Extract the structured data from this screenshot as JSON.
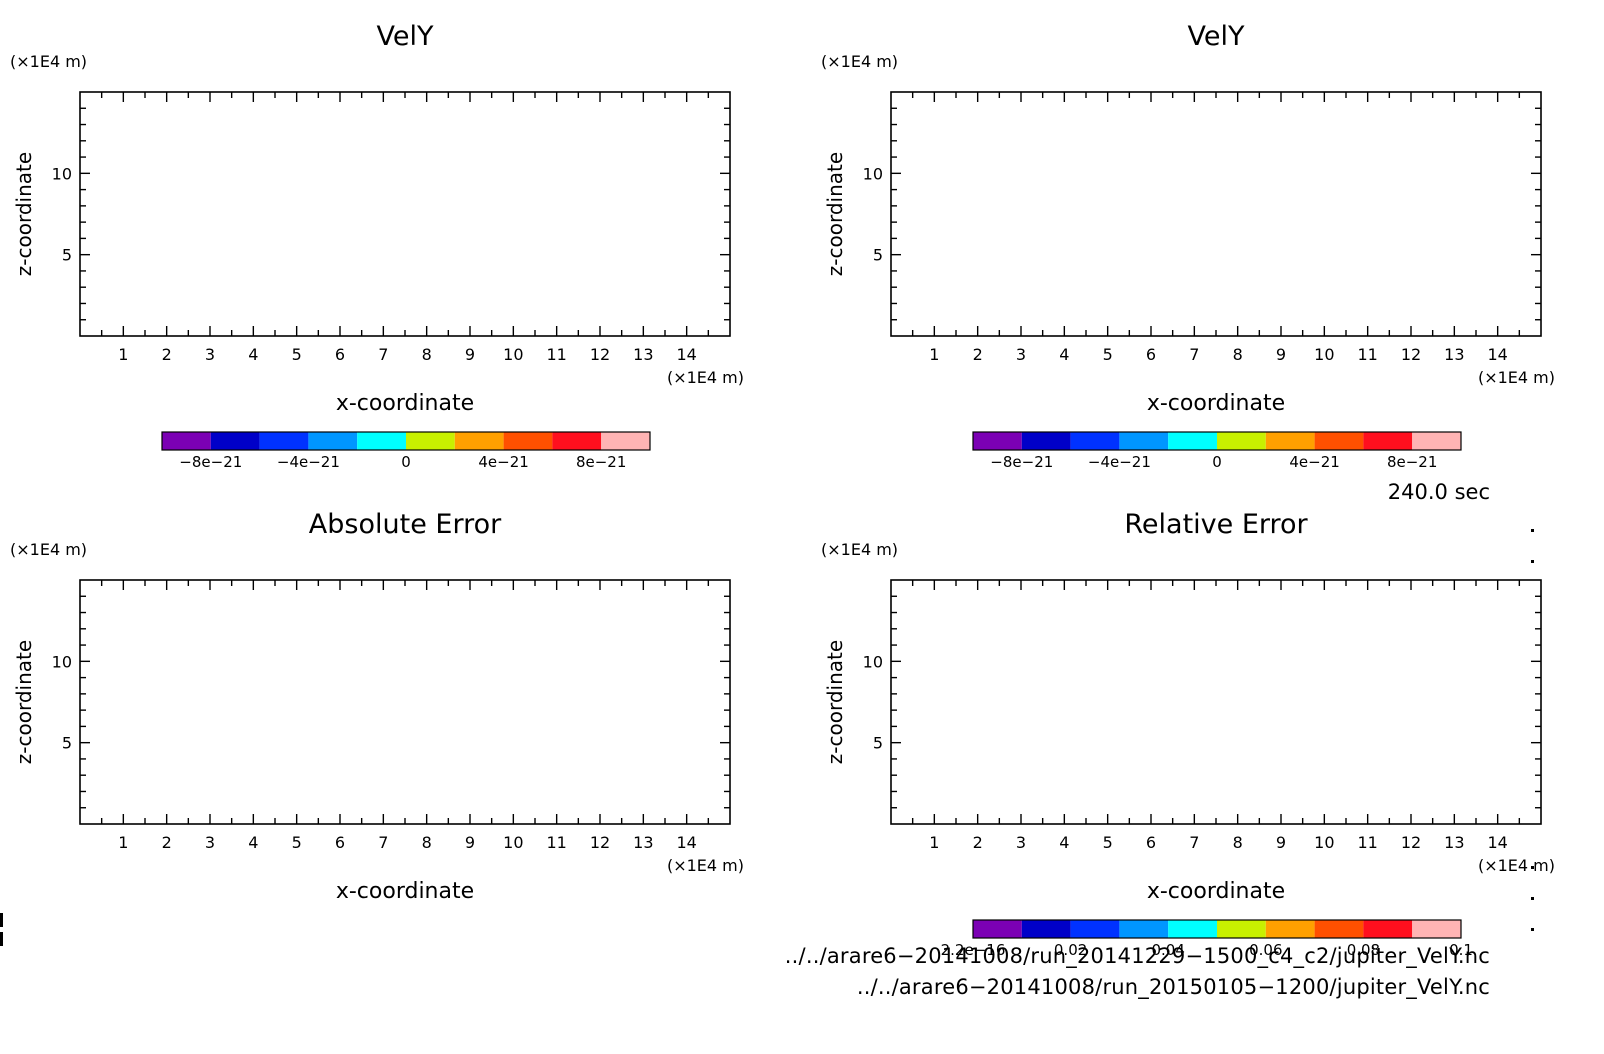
{
  "chart_data": [
    {
      "type": "heatmap",
      "title": "VelY",
      "xlabel": "x-coordinate",
      "ylabel": "z-coordinate",
      "x_unit": "(×1E4 m)",
      "y_unit": "(×1E4 m)",
      "xlim": [
        0,
        15
      ],
      "ylim": [
        0,
        15
      ],
      "xticks": [
        "1",
        "2",
        "3",
        "4",
        "5",
        "6",
        "7",
        "8",
        "9",
        "10",
        "11",
        "12",
        "13",
        "14"
      ],
      "yticks": [
        "5",
        "10"
      ],
      "colorbar": {
        "colors": [
          "#7b00b4",
          "#0000c8",
          "#0032ff",
          "#0096ff",
          "#00ffff",
          "#c8f000",
          "#ffa000",
          "#ff5000",
          "#ff0f1e",
          "#ffb4b4"
        ],
        "labels": [
          "−8e−21",
          "−4e−21",
          "0",
          "4e−21",
          "8e−21"
        ]
      }
    },
    {
      "type": "heatmap",
      "title": "VelY",
      "xlabel": "x-coordinate",
      "ylabel": "z-coordinate",
      "x_unit": "(×1E4 m)",
      "y_unit": "(×1E4 m)",
      "xlim": [
        0,
        15
      ],
      "ylim": [
        0,
        15
      ],
      "xticks": [
        "1",
        "2",
        "3",
        "4",
        "5",
        "6",
        "7",
        "8",
        "9",
        "10",
        "11",
        "12",
        "13",
        "14"
      ],
      "yticks": [
        "5",
        "10"
      ],
      "colorbar": {
        "colors": [
          "#7b00b4",
          "#0000c8",
          "#0032ff",
          "#0096ff",
          "#00ffff",
          "#c8f000",
          "#ffa000",
          "#ff5000",
          "#ff0f1e",
          "#ffb4b4"
        ],
        "labels": [
          "−8e−21",
          "−4e−21",
          "0",
          "4e−21",
          "8e−21"
        ]
      }
    },
    {
      "type": "heatmap",
      "title": "Absolute Error",
      "xlabel": "x-coordinate",
      "ylabel": "z-coordinate",
      "x_unit": "(×1E4 m)",
      "y_unit": "(×1E4 m)",
      "xlim": [
        0,
        15
      ],
      "ylim": [
        0,
        15
      ],
      "xticks": [
        "1",
        "2",
        "3",
        "4",
        "5",
        "6",
        "7",
        "8",
        "9",
        "10",
        "11",
        "12",
        "13",
        "14"
      ],
      "yticks": [
        "5",
        "10"
      ],
      "colorbar": null
    },
    {
      "type": "heatmap",
      "title": "Relative Error",
      "xlabel": "x-coordinate",
      "ylabel": "z-coordinate",
      "x_unit": "(×1E4 m)",
      "y_unit": "(×1E4 m)",
      "xlim": [
        0,
        15
      ],
      "ylim": [
        0,
        15
      ],
      "xticks": [
        "1",
        "2",
        "3",
        "4",
        "5",
        "6",
        "7",
        "8",
        "9",
        "10",
        "11",
        "12",
        "13",
        "14"
      ],
      "yticks": [
        "5",
        "10"
      ],
      "colorbar": {
        "colors": [
          "#7b00b4",
          "#0000c8",
          "#0032ff",
          "#0096ff",
          "#00ffff",
          "#c8f000",
          "#ffa000",
          "#ff5000",
          "#ff0f1e",
          "#ffb4b4"
        ],
        "labels": [
          "2.2e−16",
          "0.02",
          "0.04",
          "0.06",
          "0.08",
          "0.1"
        ]
      }
    }
  ],
  "time_label": "240.0 sec",
  "file_paths": [
    "../../arare6−20141008/run_20141229−1500_c4_c2/jupiter_VelY.nc",
    "../../arare6−20141008/run_20150105−1200/jupiter_VelY.nc"
  ]
}
